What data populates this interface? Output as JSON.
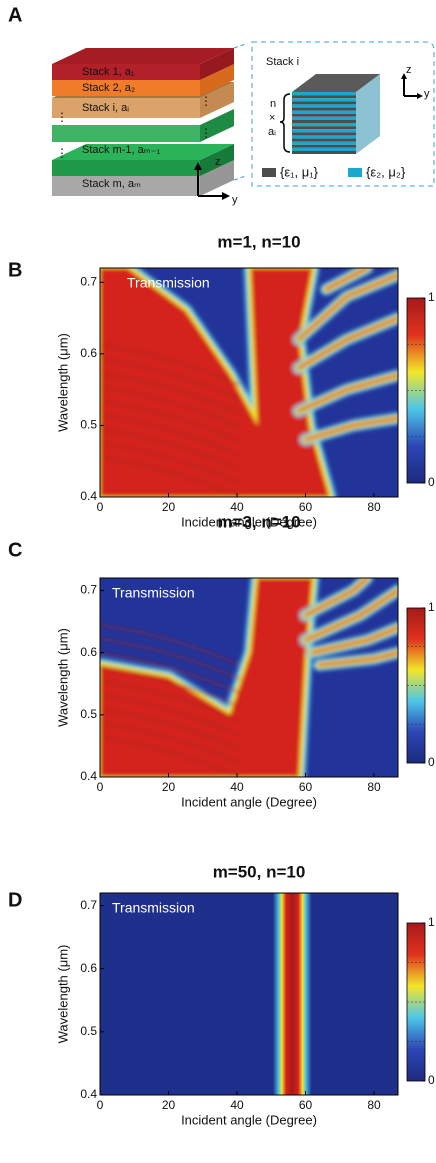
{
  "panel_a": {
    "label": "A",
    "stacks": [
      "Stack 1, a₁",
      "Stack 2, a₂",
      "Stack i, aᵢ",
      "Stack m-1, aₘ₋₁",
      "Stack m, aₘ"
    ],
    "axis_z": "z",
    "axis_y": "y",
    "inset": {
      "title": "Stack i",
      "n": "n",
      "times": "×",
      "a": "aᵢ",
      "axis_z": "z",
      "axis_y": "y",
      "legend": [
        "{ε₁, μ₁}",
        "{ε₂, μ₂}"
      ]
    }
  },
  "panel_labels": [
    "B",
    "C",
    "D"
  ],
  "chart_data": [
    {
      "type": "heatmap",
      "title": "m=1, n=10",
      "annotation": "Transmission",
      "xlabel": "Incident angle (Degree)",
      "ylabel": "Wavelength (μm)",
      "xlim": [
        0,
        87
      ],
      "ylim": [
        0.4,
        0.72
      ],
      "xticks": [
        0,
        20,
        40,
        60,
        80
      ],
      "yticks": [
        0.4,
        0.5,
        0.6,
        0.7
      ],
      "clim": [
        0,
        1
      ],
      "cticks": [
        0,
        1
      ]
    },
    {
      "type": "heatmap",
      "title": "m=3, n=10",
      "annotation": "Transmission",
      "xlabel": "Incident angle (Degree)",
      "ylabel": "Wavelength (μm)",
      "xlim": [
        0,
        87
      ],
      "ylim": [
        0.4,
        0.72
      ],
      "xticks": [
        0,
        20,
        40,
        60,
        80
      ],
      "yticks": [
        0.4,
        0.5,
        0.6,
        0.7
      ],
      "clim": [
        0,
        1
      ],
      "cticks": [
        0,
        1
      ]
    },
    {
      "type": "heatmap",
      "title": "m=50, n=10",
      "annotation": "Transmission",
      "xlabel": "Incident angle (Degree)",
      "ylabel": "Wavelength (μm)",
      "xlim": [
        0,
        87
      ],
      "ylim": [
        0.4,
        0.72
      ],
      "xticks": [
        0,
        20,
        40,
        60,
        80
      ],
      "yticks": [
        0.4,
        0.5,
        0.6,
        0.7
      ],
      "clim": [
        0,
        1
      ],
      "cticks": [
        0,
        1
      ]
    }
  ]
}
